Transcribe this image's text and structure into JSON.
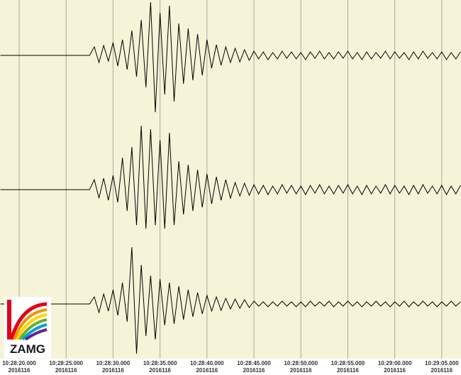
{
  "chart_data": {
    "type": "line",
    "logo_text": "ZAMG",
    "x": [
      18,
      18.5,
      19,
      19.5,
      20,
      20.5,
      21,
      21.5,
      22,
      22.5,
      23,
      23.5,
      24,
      24.5,
      25,
      25.5,
      26,
      26.5,
      27,
      27.5,
      28,
      28.5,
      29,
      29.5,
      30,
      30.5,
      31,
      31.5,
      32,
      32.5,
      33,
      33.5,
      34,
      34.5,
      35,
      35.5,
      36,
      36.5,
      37,
      37.5,
      38,
      38.5,
      39,
      39.5,
      40,
      40.5,
      41,
      41.5,
      42,
      42.5,
      43,
      43.5,
      44,
      44.5,
      45,
      45.5,
      46,
      46.5,
      47,
      47.5,
      48,
      48.5,
      49,
      49.5,
      50,
      50.5,
      51,
      51.5,
      52,
      52.5,
      53,
      53.5,
      54,
      54.5,
      55,
      55.5,
      56,
      56.5,
      57,
      57.5,
      58,
      58.5,
      59,
      59.5,
      60,
      60.5,
      61,
      61.5,
      62,
      62.5,
      63,
      63.5,
      64,
      64.5,
      65,
      65.5,
      66,
      66.5,
      67
    ],
    "series": [
      {
        "color": "#000000",
        "values": [
          0,
          0,
          0,
          0,
          0,
          0,
          0,
          0,
          0,
          0,
          0,
          0,
          0,
          0,
          0,
          0,
          0,
          0,
          0,
          0,
          12,
          -10,
          14,
          -8,
          18,
          -15,
          22,
          -20,
          35,
          -30,
          50,
          -45,
          75,
          -80,
          60,
          -55,
          70,
          -65,
          45,
          -40,
          38,
          -35,
          30,
          -28,
          22,
          -18,
          15,
          -14,
          12,
          -10,
          10,
          -9,
          8,
          -7,
          6,
          -5,
          5,
          -6,
          4,
          -5,
          6,
          -4,
          5,
          -5,
          4,
          -6,
          5,
          -4,
          6,
          -5,
          4,
          -5,
          5,
          -4,
          6,
          -5,
          4,
          -6,
          5,
          -5,
          4,
          -4,
          6,
          -5,
          5,
          -4,
          4,
          -6,
          5,
          -5,
          6,
          -4,
          4,
          -5,
          5,
          -6,
          4,
          -5,
          5
        ]
      },
      {
        "color": "#000000",
        "values": [
          0,
          0,
          0,
          0,
          0,
          0,
          0,
          0,
          0,
          0,
          0,
          0,
          0,
          0,
          0,
          0,
          0,
          0,
          0,
          0,
          14,
          -12,
          16,
          -15,
          20,
          -18,
          45,
          -30,
          60,
          -50,
          90,
          -55,
          85,
          -50,
          70,
          -55,
          80,
          -50,
          40,
          -35,
          35,
          -30,
          28,
          -25,
          22,
          -20,
          18,
          -15,
          14,
          -12,
          10,
          -9,
          9,
          -8,
          7,
          -6,
          6,
          -7,
          5,
          -6,
          7,
          -5,
          6,
          -6,
          5,
          -7,
          6,
          -5,
          7,
          -6,
          5,
          -6,
          6,
          -5,
          7,
          -6,
          5,
          -7,
          6,
          -6,
          5,
          -5,
          7,
          -6,
          6,
          -5,
          5,
          -7,
          6,
          -6,
          7,
          -5,
          5,
          -6,
          6,
          -7,
          5,
          -6,
          6
        ]
      },
      {
        "color": "#000000",
        "values": [
          0,
          0,
          0,
          0,
          0,
          0,
          0,
          0,
          0,
          0,
          0,
          0,
          0,
          0,
          0,
          0,
          0,
          0,
          0,
          0,
          10,
          -12,
          14,
          -10,
          20,
          -16,
          30,
          -25,
          80,
          -70,
          55,
          -45,
          40,
          -50,
          35,
          -30,
          30,
          -28,
          25,
          -22,
          20,
          -18,
          16,
          -14,
          12,
          -10,
          10,
          -9,
          8,
          -7,
          7,
          -6,
          6,
          -5,
          4,
          -3,
          3,
          -4,
          3,
          -3,
          4,
          -3,
          3,
          -4,
          3,
          -4,
          4,
          -3,
          3,
          -3,
          4,
          -4,
          3,
          -3,
          4,
          -3,
          3,
          -4,
          3,
          -3,
          4,
          -3,
          3,
          -4,
          3,
          -3,
          4,
          -4,
          3,
          -3,
          4,
          -3,
          3,
          -4,
          3,
          -3,
          4,
          -3,
          3
        ]
      }
    ],
    "xlim": [
      17.96,
      67.05
    ],
    "ylim": [
      -100,
      100
    ],
    "xticks": [
      {
        "value": 20,
        "label": "10:28:20.000"
      },
      {
        "value": 25,
        "label": "10:28:25.000"
      },
      {
        "value": 30,
        "label": "10:28:30.000"
      },
      {
        "value": 35,
        "label": "10:28:35.000"
      },
      {
        "value": 40,
        "label": "10:28:40.000"
      },
      {
        "value": 45,
        "label": "10:28:45.000"
      },
      {
        "value": 50,
        "label": "10:28:50.000"
      },
      {
        "value": 55,
        "label": "10:28:55.000"
      },
      {
        "value": 60,
        "label": "10:29:00.000"
      },
      {
        "value": 65,
        "label": "10:29:05.000"
      }
    ],
    "xtick_dates": [
      "2016116",
      "2016116",
      "2016116",
      "2016116",
      "2016116",
      "2016116",
      "2016116",
      "2016116",
      "2016116",
      "2016116"
    ],
    "grid": true
  }
}
